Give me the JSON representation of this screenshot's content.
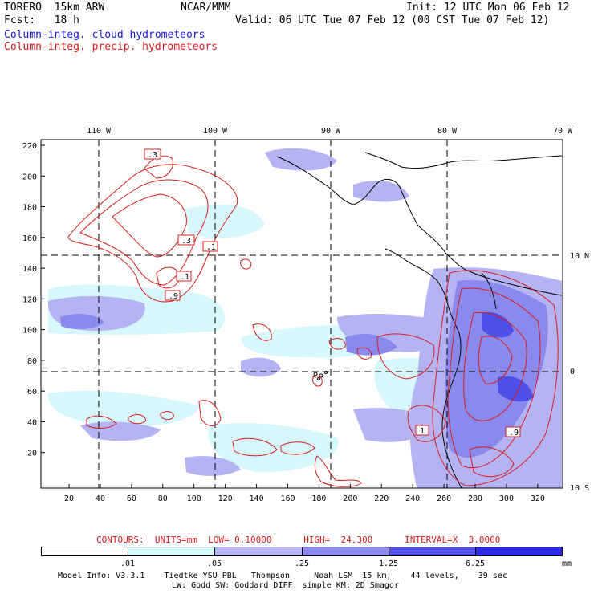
{
  "header": {
    "model": "TORERO  15km ARW",
    "center": "NCAR/MMM",
    "init": "Init: 12 UTC Mon 06 Feb 12",
    "fcst": "Fcst:   18 h",
    "valid": "Valid: 06 UTC Tue 07 Feb 12 (00 CST Tue 07 Feb 12)",
    "field1": "Column-integ. cloud hydrometeors",
    "field2": "Column-integ. precip. hydrometeors"
  },
  "colors": {
    "cloud_field": "#1a1adc",
    "precip_contour": "#d81c1c",
    "shade_1": "#ffffff",
    "shade_2": "#d6f7fb",
    "shade_3": "#b4b4f4",
    "shade_4": "#8a8aee",
    "shade_5": "#5050e8",
    "shade_6": "#2a2ae4"
  },
  "map": {
    "top_lon_labels": [
      "110 W",
      "100 W",
      "90 W",
      "80 W",
      "70 W"
    ],
    "right_lat_labels": [
      "10 N",
      "0",
      "10 S"
    ],
    "left_ticks": [
      "220",
      "200",
      "180",
      "160",
      "140",
      "120",
      "100",
      "80",
      "60",
      "40",
      "20"
    ],
    "bottom_ticks": [
      "20",
      "40",
      "60",
      "80",
      "100",
      "120",
      "140",
      "160",
      "180",
      "200",
      "220",
      "240",
      "260",
      "280",
      "300",
      "320"
    ],
    "contour_labels": [
      ".3",
      ".3",
      ".1",
      ".1",
      ".9",
      "1",
      ".9"
    ]
  },
  "contour_info": {
    "text": "CONTOURS:  UNITS=mm  LOW= 0.10000      HIGH=  24.300      INTERVAL=X  3.0000"
  },
  "legend": {
    "labels": [
      ".01",
      ".05",
      ".25",
      "1.25",
      "6.25"
    ],
    "unit": "mm"
  },
  "footer": {
    "line1": "Model Info: V3.3.1    Tiedtke YSU PBL   Thompson     Noah LSM  15 km,    44 levels,    39 sec",
    "line2": "LW: Godd SW: Goddard DIFF: simple KM: 2D Smagor"
  }
}
